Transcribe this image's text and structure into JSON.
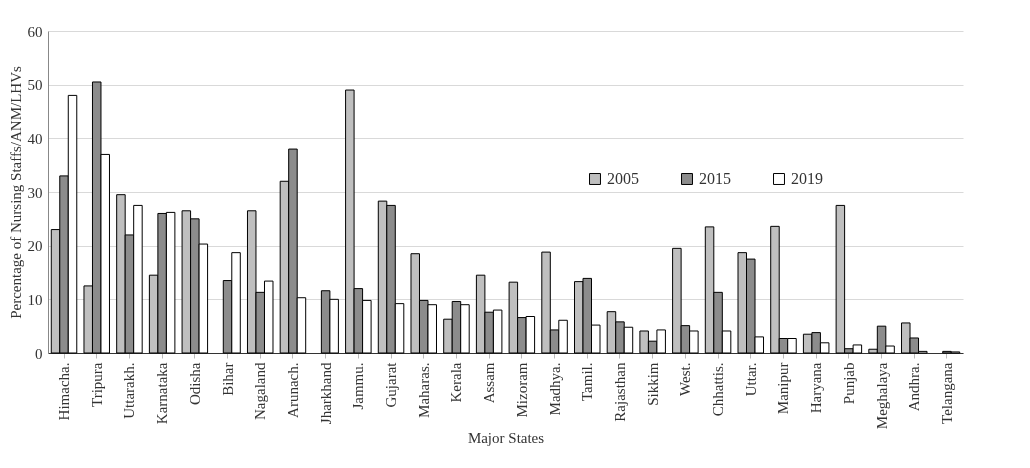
{
  "chart_data": {
    "type": "bar",
    "xlabel": "Major States",
    "ylabel": "Percentage of Nursing Staffs/ANM/LHVs",
    "categories": [
      "Himacha.",
      "Tripura",
      "Uttarakh.",
      "Karnataka",
      "Odisha",
      "Bihar",
      "Nagaland",
      "Arunach.",
      "Jharkhand",
      "Jammu.",
      "Gujarat",
      "Maharas.",
      "Kerala",
      "Assam",
      "Mizoram",
      "Madhya.",
      "Tamil.",
      "Rajasthan",
      "Sikkim",
      "West.",
      "Chhattis.",
      "Uttar.",
      "Manipur",
      "Haryana",
      "Punjab",
      "Meghalaya",
      "Andhra.",
      "Telangana"
    ],
    "series": [
      {
        "name": "2005",
        "color": "#bfbfbf",
        "values": [
          23,
          12.5,
          29.5,
          14.5,
          26.5,
          null,
          26.5,
          32,
          null,
          49,
          28.3,
          18.5,
          6.3,
          14.5,
          13.2,
          18.8,
          13.3,
          7.7,
          4.1,
          19.5,
          23.5,
          18.7,
          23.6,
          3.5,
          27.5,
          0.7,
          5.6,
          null
        ]
      },
      {
        "name": "2015",
        "color": "#8c8c8c",
        "values": [
          33,
          50.5,
          22,
          26,
          25,
          13.5,
          11.3,
          38,
          11.6,
          12,
          27.5,
          9.8,
          9.6,
          7.6,
          6.6,
          4.3,
          13.9,
          5.8,
          2.2,
          5.1,
          11.3,
          17.5,
          2.7,
          3.8,
          0.8,
          5,
          2.8,
          0.3
        ]
      },
      {
        "name": "2019",
        "color": "#ffffff",
        "values": [
          48,
          37,
          27.5,
          26.2,
          20.3,
          18.7,
          13.4,
          10.3,
          10,
          9.8,
          9.2,
          9,
          9,
          8,
          6.8,
          6.1,
          5.2,
          4.8,
          4.3,
          4.1,
          4.1,
          3,
          2.7,
          1.9,
          1.5,
          1.3,
          0.3,
          0.2
        ]
      }
    ],
    "ylim": [
      0,
      60
    ],
    "yticks": [
      0,
      10,
      20,
      30,
      40,
      50,
      60
    ],
    "grid": "y",
    "legend": "top right"
  }
}
